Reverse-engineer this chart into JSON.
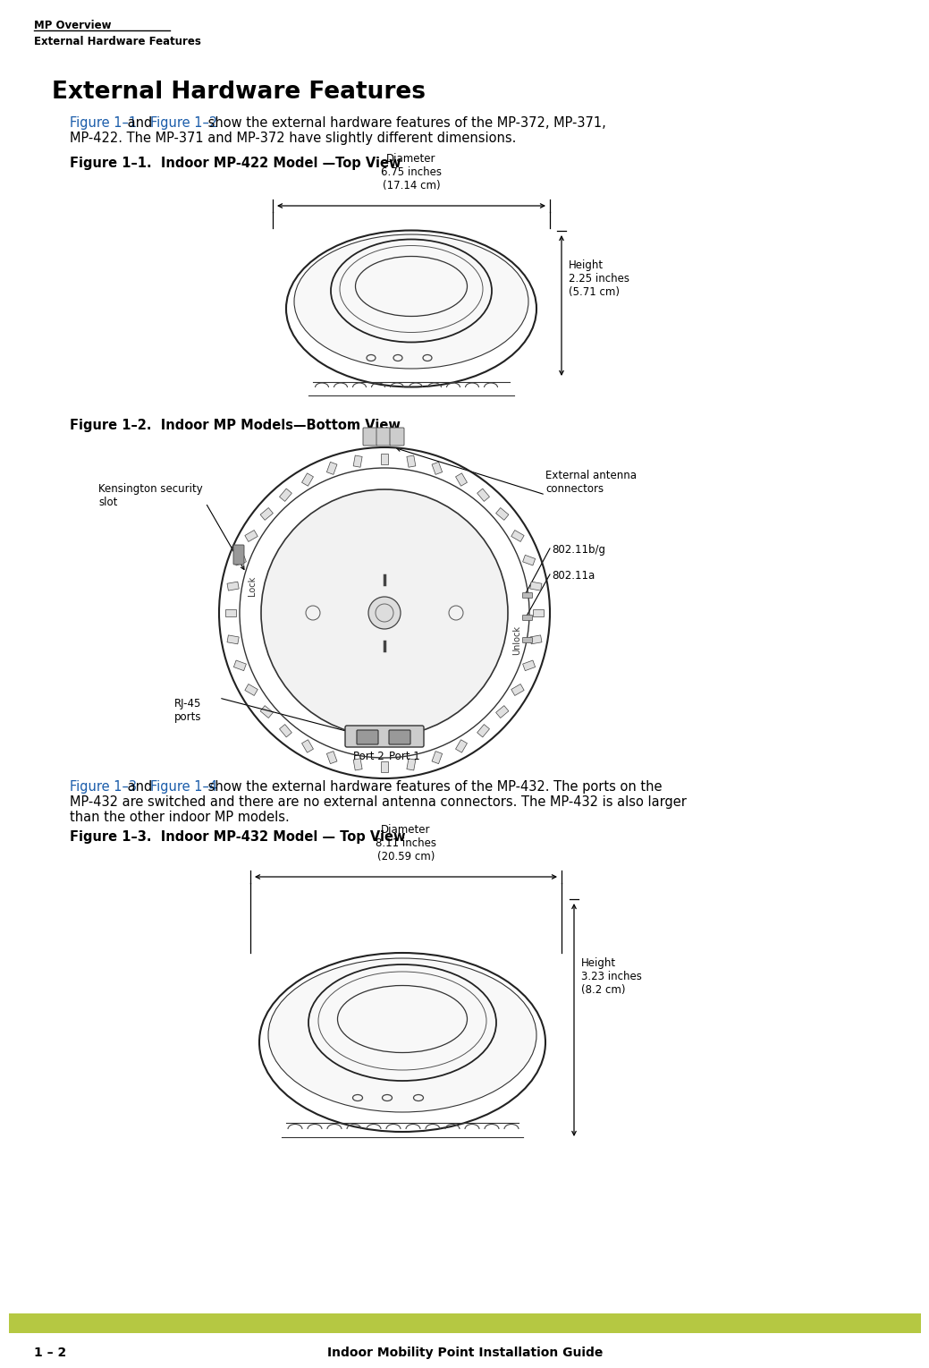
{
  "bg_color": "#ffffff",
  "header_top": "MP Overview",
  "header_bottom": "External Hardware Features",
  "title_main": "External Hardware Features",
  "intro_blue1": "Figure 1–1",
  "intro_black1": " and ",
  "intro_blue2": "Figure 1–2",
  "intro_black2": " show the external hardware features of the MP-372, MP-371,",
  "intro_line2": "MP-422. The MP-371 and MP-372 have slightly different dimensions.",
  "fig1_caption": "Figure 1–1.  Indoor MP-422 Model —Top View",
  "fig2_caption": "Figure 1–2.  Indoor MP Models—Bottom View",
  "fig3_blue1": "Figure 1–3",
  "fig3_black1": " and ",
  "fig3_blue2": "Figure 1–4",
  "fig3_black2": " show the external hardware features of the MP-432. The ports on the",
  "fig3_line2": "MP-432 are switched and there are no external antenna connectors. The MP-432 is also larger",
  "fig3_line3": "than the other indoor MP models.",
  "fig3_caption": "Figure 1–3.  Indoor MP-432 Model — Top View",
  "footer_bar_color": "#b5c842",
  "footer_left": "1 – 2",
  "footer_right": "Indoor Mobility Point Installation Guide",
  "blue_color": "#1a5caa",
  "fig1_diam_label": "Diameter\n6.75 inches\n(17.14 cm)",
  "fig1_height_label": "Height\n2.25 inches\n(5.71 cm)",
  "fig2_kensington_label": "Kensington security\nslot",
  "fig2_antenna_label": "External antenna\nconnectors",
  "fig2_80211bg_label": "802.11b/g",
  "fig2_80211a_label": "802.11a",
  "fig2_rj45_label": "RJ-45\nports",
  "fig2_port2_label": "Port 2",
  "fig2_port1_label": "Port 1",
  "fig3_diam_label": "Diameter\n8.11 inches\n(20.59 cm)",
  "fig3_height_label": "Height\n3.23 inches\n(8.2 cm)"
}
